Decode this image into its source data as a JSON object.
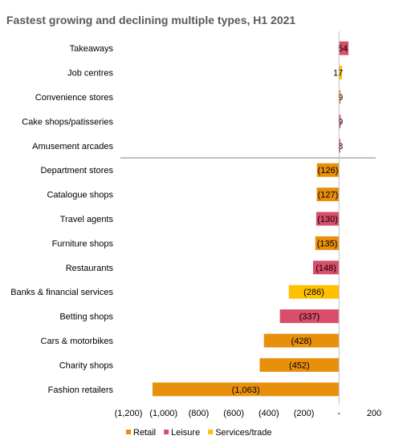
{
  "chart_data": {
    "type": "bar",
    "orientation": "horizontal",
    "title": "Fastest growing and declining multiple types, H1 2021",
    "categories": [
      "Takeaways",
      "Job centres",
      "Convenience stores",
      "Cake shops/patisseries",
      "Amusement arcades",
      "Department stores",
      "Catalogue shops",
      "Travel agents",
      "Furniture shops",
      "Restaurants",
      "Banks & financial services",
      "Betting shops",
      "Cars & motorbikes",
      "Charity shops",
      "Fashion retailers"
    ],
    "values": [
      54,
      17,
      9,
      9,
      8,
      -126,
      -127,
      -130,
      -135,
      -148,
      -286,
      -337,
      -428,
      -452,
      -1063
    ],
    "value_labels": [
      "54",
      "17",
      "9",
      "9",
      "8",
      "(126)",
      "(127)",
      "(130)",
      "(135)",
      "(148)",
      "(286)",
      "(337)",
      "(428)",
      "(452)",
      "(1,063)"
    ],
    "groups": [
      "Leisure",
      "Services/trade",
      "Retail",
      "Leisure",
      "Leisure",
      "Retail",
      "Retail",
      "Leisure",
      "Retail",
      "Leisure",
      "Services/trade",
      "Leisure",
      "Retail",
      "Retail",
      "Retail"
    ],
    "xlim": [
      -1200,
      200
    ],
    "xticks": [
      -1200,
      -1000,
      -800,
      -600,
      -400,
      -200,
      0,
      200
    ],
    "xtick_labels": [
      "(1,200)",
      "(1,000)",
      "(800)",
      "(600)",
      "(400)",
      "(200)",
      "-",
      "200"
    ],
    "legend": [
      {
        "name": "Retail",
        "color": "#E8900C"
      },
      {
        "name": "Leisure",
        "color": "#D94E6A"
      },
      {
        "name": "Services/trade",
        "color": "#FFC000"
      }
    ],
    "legend_position": "bottom",
    "grid": false
  }
}
